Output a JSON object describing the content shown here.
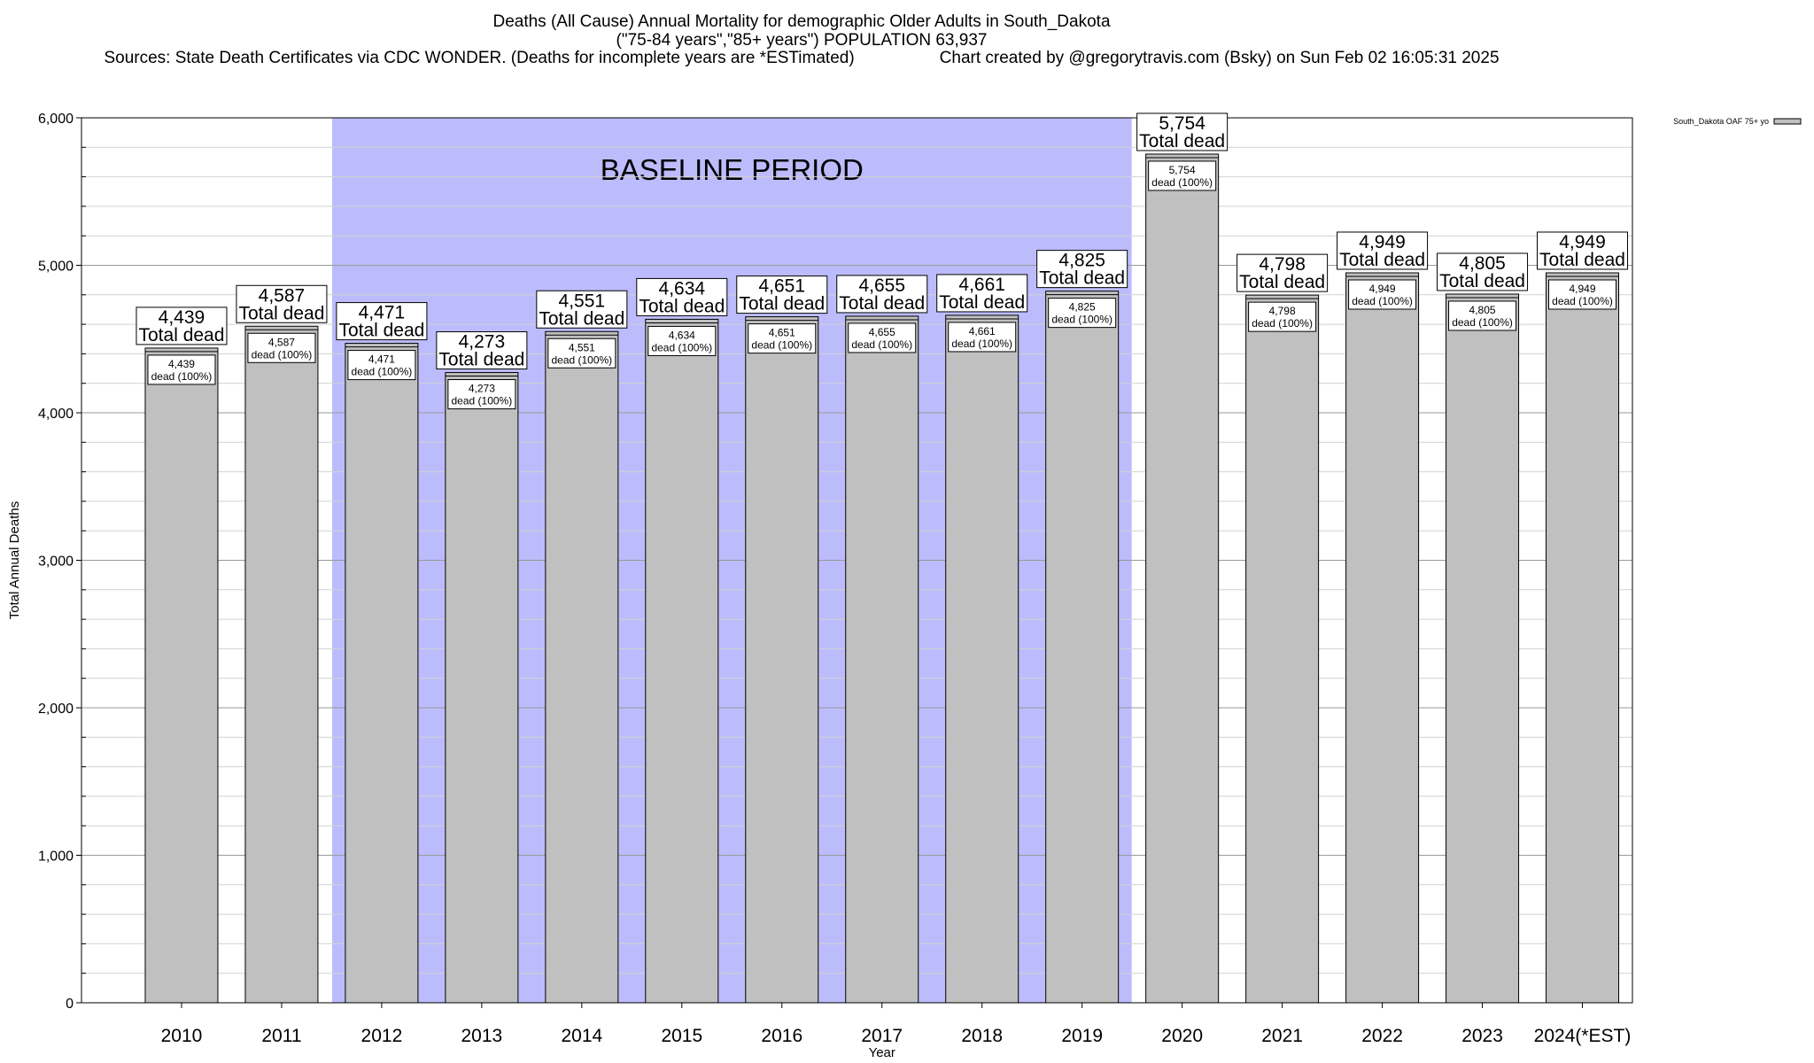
{
  "chart_data": {
    "type": "bar",
    "title": "Deaths (All Cause) Annual Mortality for demographic Older Adults in South_Dakota",
    "subtitle": "(\"75-84 years\",\"85+ years\") POPULATION 63,937",
    "sources": "Sources: State Death Certificates via CDC WONDER. (Deaths for incomplete years are *ESTimated)",
    "credit": "Chart created by @gregorytravis.com (Bsky) on Sun Feb 02 16:05:31 2025",
    "xlabel": "Year",
    "ylabel": "Total Annual Deaths",
    "ylim": [
      0,
      6000
    ],
    "yticks": [
      0,
      1000,
      2000,
      3000,
      4000,
      5000,
      6000
    ],
    "ytick_labels": [
      "0",
      "1,000",
      "2,000",
      "3,000",
      "4,000",
      "5,000",
      "6,000"
    ],
    "minor_grid_step": 200,
    "grid": true,
    "categories": [
      "2010",
      "2011",
      "2012",
      "2013",
      "2014",
      "2015",
      "2016",
      "2017",
      "2018",
      "2019",
      "2020",
      "2021",
      "2022",
      "2023",
      "2024(*EST)"
    ],
    "series": [
      {
        "name": "South_Dakota OAF 75+ yo",
        "values": [
          4439,
          4587,
          4471,
          4273,
          4551,
          4634,
          4651,
          4655,
          4661,
          4825,
          5754,
          4798,
          4949,
          4805,
          4949
        ],
        "color": "#c0c0c0"
      }
    ],
    "value_labels": [
      "4,439",
      "4,587",
      "4,471",
      "4,273",
      "4,551",
      "4,634",
      "4,651",
      "4,655",
      "4,661",
      "4,825",
      "5,754",
      "4,798",
      "4,949",
      "4,805",
      "4,949"
    ],
    "total_label_suffix": "Total dead",
    "inner_label_suffix": "dead (100%)",
    "baseline_band": {
      "label": "BASELINE PERIOD",
      "from": "2012",
      "to": "2019",
      "color": "#bcbcfc"
    },
    "legend": {
      "label": "South_Dakota OAF 75+ yo",
      "placement": "outside-top-right"
    }
  }
}
